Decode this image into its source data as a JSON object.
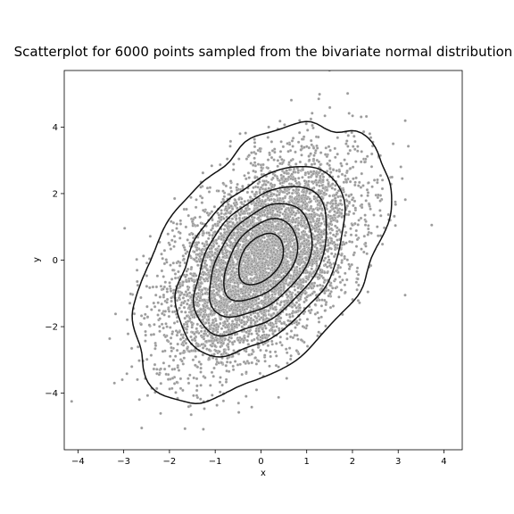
{
  "chart_data": {
    "type": "scatter",
    "title": "Scatterplot for 6000 points sampled from the bivariate normal distribution",
    "xlabel": "x",
    "ylabel": "y",
    "xlim": [
      -4.3,
      4.4
    ],
    "ylim": [
      -5.7,
      5.7
    ],
    "xticks": [
      -4,
      -3,
      -2,
      -1,
      0,
      1,
      2,
      3,
      4
    ],
    "yticks": [
      -4,
      -2,
      0,
      2,
      4
    ],
    "grid": false,
    "distribution": {
      "n_points": 6000,
      "mean": [
        0,
        0
      ],
      "std": [
        1,
        1.5
      ],
      "correlation": 0.5
    },
    "kde_contours": {
      "levels": 6,
      "color": "#111111"
    },
    "point_color": "#9a9a9a"
  }
}
